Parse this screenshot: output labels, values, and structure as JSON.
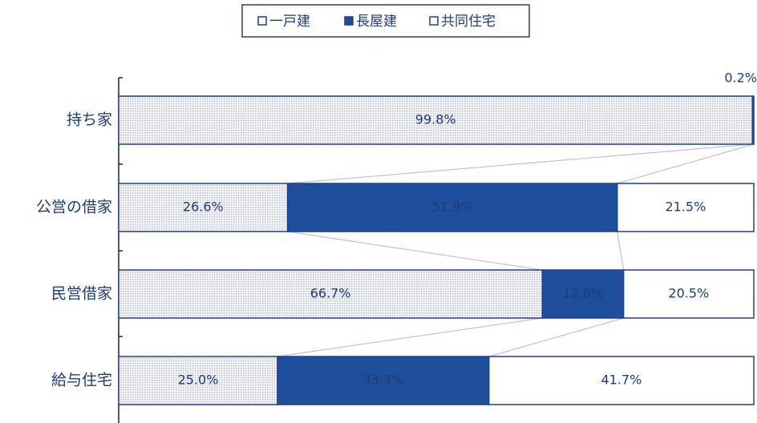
{
  "chart_data": {
    "type": "stacked-bar-horizontal",
    "categories": [
      "持ち家",
      "公営の借家",
      "民営借家",
      "給与住宅"
    ],
    "series": [
      {
        "name": "一戸建",
        "color": "#b9bec8",
        "pattern": "dotted",
        "values": [
          99.8,
          26.6,
          66.7,
          25.0
        ],
        "value_labels": [
          "99.8%",
          "26.6%",
          "66.7%",
          "25.0%"
        ]
      },
      {
        "name": "長屋建",
        "color": "#1f4e9c",
        "values": [
          0.2,
          51.9,
          12.8,
          33.3
        ],
        "value_labels": [
          "0.2%",
          "51.9%",
          "12.8%",
          "33.3%"
        ]
      },
      {
        "name": "共同住宅",
        "color": "#ffffff",
        "values": [
          null,
          21.5,
          20.5,
          41.7
        ],
        "value_labels": [
          null,
          "21.5%",
          "20.5%",
          "41.7%"
        ]
      }
    ],
    "xlim": [
      0,
      100
    ],
    "border_color": "#1f3f8f",
    "legend": "top"
  }
}
